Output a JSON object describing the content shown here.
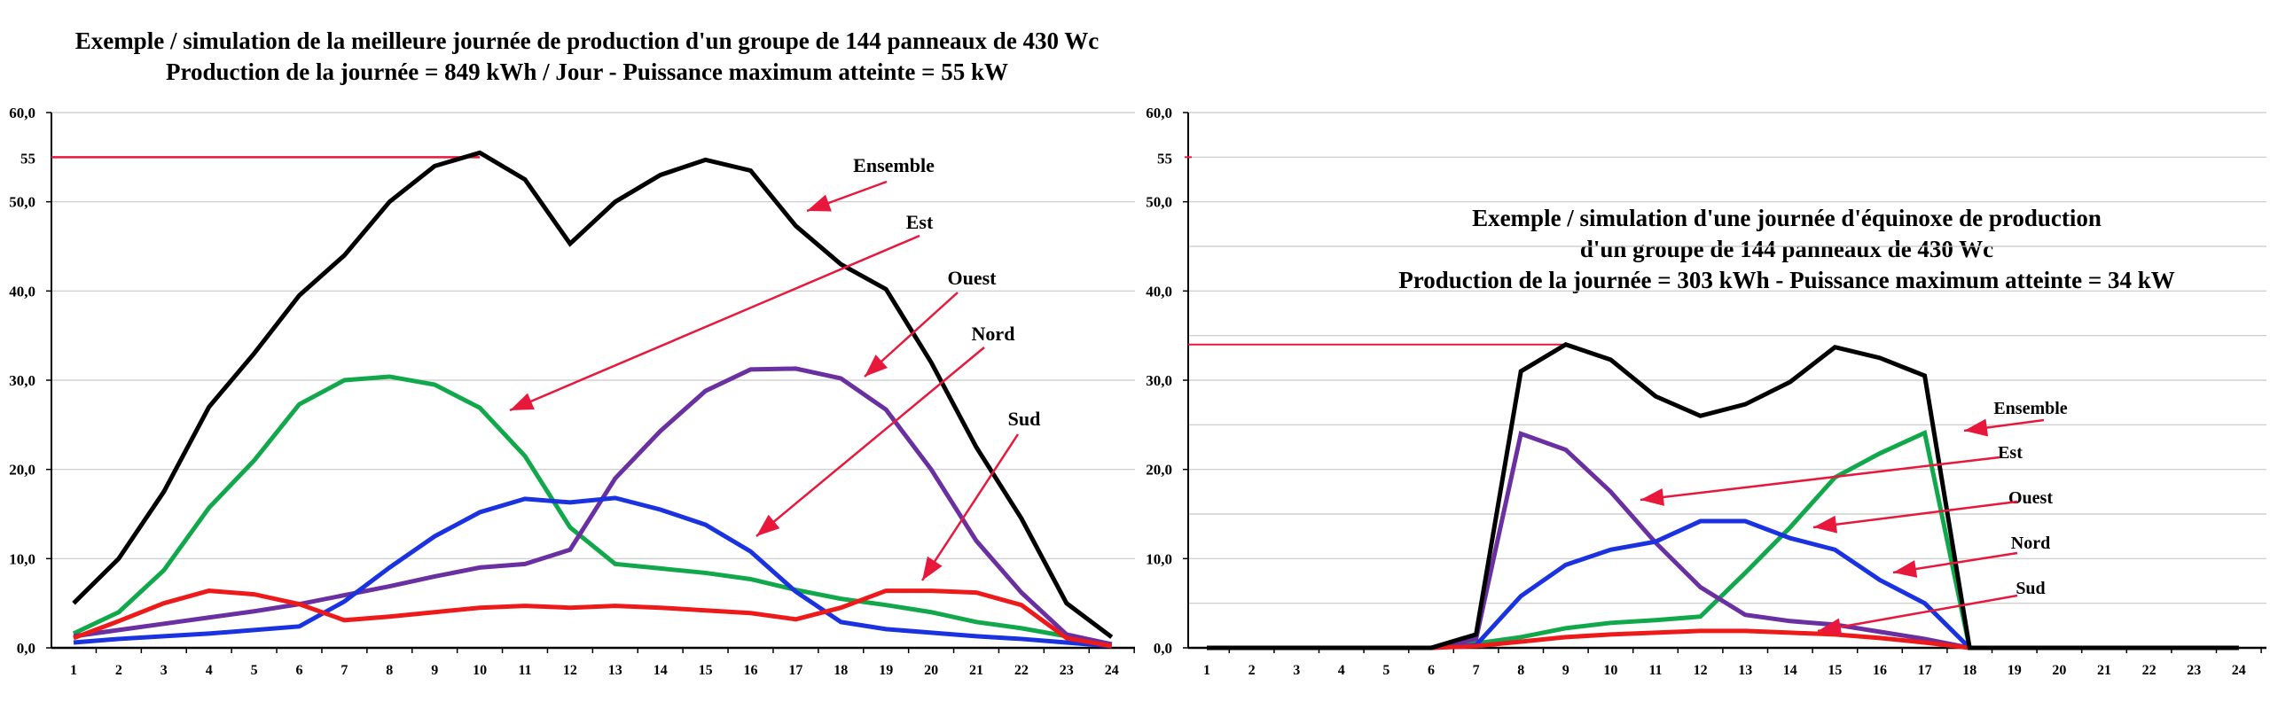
{
  "chart_data": [
    {
      "type": "line",
      "title": "Exemple / simulation de la meilleure journée de production d'un groupe de 144 panneaux de 430 Wc",
      "subtitle": "Production de la journée = 849 kWh / Jour - Puissance maximum atteinte = 55 kW",
      "x": [
        1,
        2,
        3,
        4,
        5,
        6,
        7,
        8,
        9,
        10,
        11,
        12,
        13,
        14,
        15,
        16,
        17,
        18,
        19,
        20,
        21,
        22,
        23,
        24
      ],
      "ylim": [
        0,
        60
      ],
      "ytick_labels": [
        "0,0",
        "10,0",
        "20,0",
        "30,0",
        "40,0",
        "50,0",
        "60,0"
      ],
      "yticks": [
        0,
        10,
        20,
        30,
        40,
        50,
        60
      ],
      "max_marker": {
        "label": "55",
        "value": 55,
        "x": 10
      },
      "grid": true,
      "series": [
        {
          "name": "Ensemble",
          "color": "#000000",
          "values": [
            5,
            10,
            17.5,
            27,
            33,
            39.5,
            44,
            50,
            54,
            55.5,
            52.5,
            45.3,
            50,
            53,
            54.7,
            53.5,
            47.3,
            43,
            40.2,
            32,
            22.5,
            14.5,
            5,
            1.2
          ]
        },
        {
          "name": "Est",
          "color": "#11a84c",
          "values": [
            1.6,
            4,
            8.7,
            15.7,
            21,
            27.3,
            30,
            30.4,
            29.5,
            26.9,
            21.5,
            13.5,
            9.4,
            8.9,
            8.4,
            7.7,
            6.5,
            5.5,
            4.8,
            4,
            2.9,
            2.2,
            1.3,
            0.4
          ]
        },
        {
          "name": "Ouest",
          "color": "#6a2fa0",
          "values": [
            1.3,
            2,
            2.7,
            3.4,
            4.1,
            4.9,
            5.9,
            6.9,
            8,
            9,
            9.4,
            11,
            19,
            24.3,
            28.8,
            31.2,
            31.3,
            30.2,
            26.7,
            20,
            12,
            6.2,
            1.5,
            0.4
          ]
        },
        {
          "name": "Nord",
          "color": "#1a32e0",
          "values": [
            0.6,
            1,
            1.3,
            1.6,
            2,
            2.4,
            5.2,
            9,
            12.5,
            15.2,
            16.7,
            16.3,
            16.8,
            15.5,
            13.8,
            10.8,
            6.3,
            2.9,
            2.1,
            1.7,
            1.3,
            1,
            0.6,
            0.2
          ]
        },
        {
          "name": "Sud",
          "color": "#ee1a1a",
          "values": [
            1.1,
            3,
            5,
            6.4,
            6,
            4.9,
            3.1,
            3.5,
            4,
            4.5,
            4.7,
            4.5,
            4.7,
            4.5,
            4.2,
            3.9,
            3.2,
            4.5,
            6.4,
            6.4,
            6.2,
            4.8,
            1.1,
            0.2
          ]
        }
      ],
      "annotations": [
        "Ensemble",
        "Est",
        "Ouest",
        "Nord",
        "Sud"
      ]
    },
    {
      "type": "line",
      "title": "Exemple / simulation d'une journée d'équinoxe de production",
      "title2": "d'un groupe de 144 panneaux de 430 Wc",
      "subtitle": "Production de la journée = 303 kWh - Puissance maximum atteinte = 34 kW",
      "x": [
        1,
        2,
        3,
        4,
        5,
        6,
        7,
        8,
        9,
        10,
        11,
        12,
        13,
        14,
        15,
        16,
        17,
        18,
        19,
        20,
        21,
        22,
        23,
        24
      ],
      "ylim": [
        0,
        60
      ],
      "ytick_labels": [
        "0,0",
        "10,0",
        "20,0",
        "30,0",
        "40,0",
        "50,0",
        "60,0"
      ],
      "yticks": [
        0,
        10,
        20,
        30,
        40,
        50,
        60
      ],
      "max_marker": {
        "label": "55",
        "value": 55
      },
      "max_line": {
        "value": 34,
        "x": 9
      },
      "grid": true,
      "series": [
        {
          "name": "Ensemble",
          "color": "#000000",
          "values": [
            0,
            0,
            0,
            0,
            0,
            0,
            1.5,
            31,
            34,
            32.3,
            28.2,
            26,
            27.3,
            29.8,
            33.7,
            32.5,
            30.5,
            0,
            0,
            0,
            0,
            0,
            0,
            0
          ]
        },
        {
          "name": "Est",
          "color": "#11a84c",
          "values": [
            0,
            0,
            0,
            0,
            0,
            0,
            0.5,
            1.2,
            2.2,
            2.8,
            3.1,
            3.5,
            8.4,
            13.5,
            19.1,
            21.8,
            24.1,
            0,
            0,
            0,
            0,
            0,
            0,
            0
          ]
        },
        {
          "name": "Ouest",
          "color": "#6a2fa0",
          "values": [
            0,
            0,
            0,
            0,
            0,
            0,
            1,
            24,
            22.2,
            17.5,
            11.8,
            6.8,
            3.7,
            3,
            2.6,
            1.8,
            1,
            0,
            0,
            0,
            0,
            0,
            0,
            0
          ]
        },
        {
          "name": "Nord",
          "color": "#1a32e0",
          "values": [
            0,
            0,
            0,
            0,
            0,
            0,
            0.3,
            5.8,
            9.3,
            11,
            11.9,
            14.2,
            14.2,
            12.3,
            11,
            7.6,
            5,
            0,
            0,
            0,
            0,
            0,
            0,
            0
          ]
        },
        {
          "name": "Sud",
          "color": "#ee1a1a",
          "values": [
            0,
            0,
            0,
            0,
            0,
            0,
            0.2,
            0.7,
            1.2,
            1.5,
            1.7,
            1.9,
            1.9,
            1.7,
            1.5,
            1.1,
            0.6,
            0,
            0,
            0,
            0,
            0,
            0,
            0
          ]
        }
      ],
      "annotations": [
        "Ensemble",
        "Est",
        "Ouest",
        "Nord",
        "Sud"
      ]
    }
  ]
}
